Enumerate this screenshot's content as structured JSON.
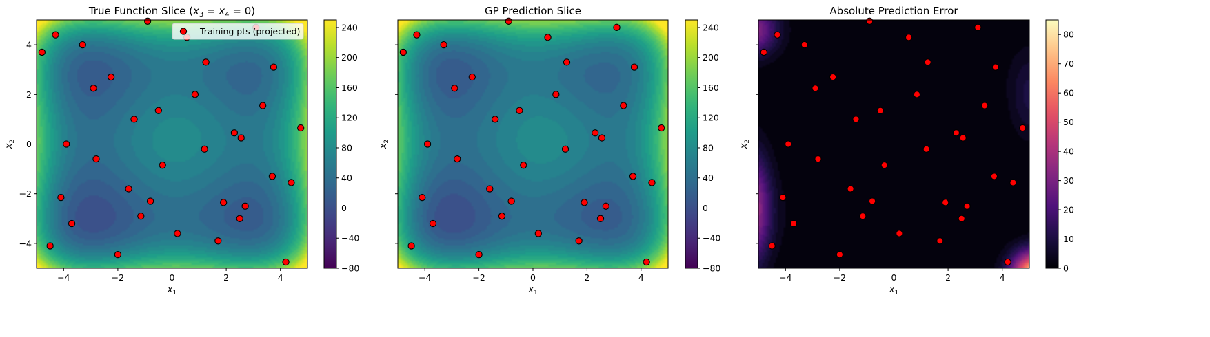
{
  "chart_data": [
    {
      "type": "contour",
      "title": "True Function Slice (x3 = x4 = 0)",
      "title_parts": {
        "prefix": "True Function Slice (",
        "v1": "x",
        "s1": "3",
        "mid": " = ",
        "v2": "x",
        "s2": "4",
        "suffix": " = 0)"
      },
      "xlabel": "x1",
      "ylabel": "x2",
      "xlim": [
        -5,
        5
      ],
      "ylim": [
        -5,
        5
      ],
      "xticks": [
        -4,
        -2,
        0,
        2,
        4
      ],
      "yticks": [
        -4,
        -2,
        0,
        2,
        4
      ],
      "show_yticklabels": true,
      "colormap": "viridis",
      "colorbar": {
        "min": -80,
        "max": 250,
        "ticks": [
          -80,
          -40,
          0,
          40,
          80,
          120,
          160,
          200,
          240
        ]
      },
      "legend": {
        "label": "Training pts (projected)",
        "placement": "upper-right"
      }
    },
    {
      "type": "contour",
      "title": "GP Prediction Slice",
      "xlabel": "x1",
      "ylabel": "x2",
      "xlim": [
        -5,
        5
      ],
      "ylim": [
        -5,
        5
      ],
      "xticks": [
        -4,
        -2,
        0,
        2,
        4
      ],
      "yticks": [
        -4,
        -2,
        0,
        2,
        4
      ],
      "show_yticklabels": false,
      "colormap": "viridis",
      "colorbar": {
        "min": -80,
        "max": 250,
        "ticks": [
          -80,
          -40,
          0,
          40,
          80,
          120,
          160,
          200,
          240
        ]
      }
    },
    {
      "type": "contour",
      "title": "Absolute Prediction Error",
      "xlabel": "x1",
      "ylabel": "x2",
      "xlim": [
        -5,
        5
      ],
      "ylim": [
        -5,
        5
      ],
      "xticks": [
        -4,
        -2,
        0,
        2,
        4
      ],
      "yticks": [
        -4,
        -2,
        0,
        2,
        4
      ],
      "show_yticklabels": false,
      "colormap": "magma",
      "colorbar": {
        "min": 0,
        "max": 85,
        "ticks": [
          0,
          10,
          20,
          30,
          40,
          50,
          60,
          70,
          80
        ]
      }
    }
  ],
  "training_points": [
    [
      -4.8,
      3.7
    ],
    [
      -4.3,
      4.4
    ],
    [
      -3.3,
      4.0
    ],
    [
      -2.9,
      2.25
    ],
    [
      -2.25,
      2.7
    ],
    [
      -0.9,
      4.95
    ],
    [
      0.55,
      4.3
    ],
    [
      1.25,
      3.3
    ],
    [
      0.85,
      2.0
    ],
    [
      -0.5,
      1.35
    ],
    [
      -1.4,
      1.0
    ],
    [
      3.1,
      4.7
    ],
    [
      3.75,
      3.1
    ],
    [
      3.35,
      1.55
    ],
    [
      2.3,
      0.45
    ],
    [
      2.55,
      0.25
    ],
    [
      4.75,
      0.65
    ],
    [
      1.2,
      -0.2
    ],
    [
      -3.9,
      0.0
    ],
    [
      -2.8,
      -0.6
    ],
    [
      -0.35,
      -0.85
    ],
    [
      -4.1,
      -2.15
    ],
    [
      -3.7,
      -3.2
    ],
    [
      -1.6,
      -1.8
    ],
    [
      -0.8,
      -2.3
    ],
    [
      -1.15,
      -2.9
    ],
    [
      0.2,
      -3.6
    ],
    [
      1.9,
      -2.35
    ],
    [
      2.7,
      -2.5
    ],
    [
      2.5,
      -3.0
    ],
    [
      3.7,
      -1.3
    ],
    [
      4.4,
      -1.55
    ],
    [
      1.7,
      -3.9
    ],
    [
      -2.0,
      -4.45
    ],
    [
      -4.5,
      -4.1
    ],
    [
      4.2,
      -4.75
    ]
  ]
}
